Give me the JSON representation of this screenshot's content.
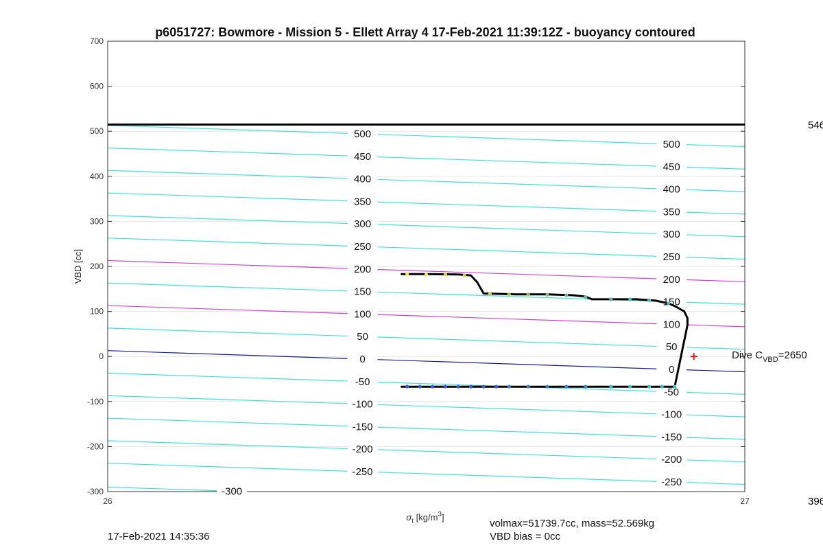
{
  "chart_data": {
    "type": "line",
    "title": "p6051727: Bowmore - Mission 5 - Ellett Array 4 17-Feb-2021 11:39:12Z - buoyancy contoured",
    "xlabel_main": "σ",
    "xlabel_sub": "t",
    "xlabel_unit": " [kg/m",
    "xlabel_unit_sup": "3",
    "xlabel_unit_end": "]",
    "ylabel": "VBD [cc]",
    "xlim": [
      26,
      27
    ],
    "ylim": [
      -300,
      700
    ],
    "xticks": [
      "26",
      "27"
    ],
    "yticks": [
      "700",
      "600",
      "500",
      "400",
      "300",
      "200",
      "100",
      "0",
      "-100",
      "-200",
      "-300"
    ],
    "ytick_values": [
      700,
      600,
      500,
      400,
      300,
      200,
      100,
      0,
      -100,
      -200,
      -300
    ],
    "grid": "y",
    "vbd_max_line": 515,
    "contours": {
      "levels": [
        -300,
        -250,
        -200,
        -150,
        -100,
        -50,
        0,
        50,
        100,
        150,
        200,
        250,
        300,
        350,
        400,
        450,
        500
      ],
      "labels": [
        "-300",
        "-250",
        "-200",
        "-150",
        "-100",
        "-50",
        "0",
        "50",
        "100",
        "150",
        "200",
        "250",
        "300",
        "350",
        "400",
        "450",
        "500"
      ],
      "offsets_at_x26": [
        -290,
        -237,
        -187,
        -137,
        -87,
        -37,
        13,
        63,
        113,
        163,
        213,
        263,
        313,
        363,
        413,
        463,
        513
      ],
      "slope_per_unit_x": -47,
      "colors": {
        "default": "#40e0d0",
        "zero": "#1a1a8c",
        "highlight": "#cc44cc"
      },
      "highlight_levels": [
        100,
        200
      ]
    },
    "series": [
      {
        "type": "profile",
        "points": [
          [
            26.46,
            183
          ],
          [
            26.5,
            183
          ],
          [
            26.55,
            182
          ],
          [
            26.57,
            180
          ],
          [
            26.58,
            165
          ],
          [
            26.59,
            140
          ],
          [
            26.64,
            138
          ],
          [
            26.69,
            138
          ],
          [
            26.73,
            136
          ],
          [
            26.75,
            133
          ],
          [
            26.76,
            127
          ],
          [
            26.83,
            127
          ],
          [
            26.86,
            124
          ],
          [
            26.88,
            118
          ],
          [
            26.89,
            112
          ],
          [
            26.905,
            100
          ],
          [
            26.91,
            85
          ],
          [
            26.91,
            70
          ],
          [
            26.89,
            -67
          ],
          [
            26.46,
            -67
          ]
        ],
        "dots_upper": [
          [
            26.47,
            183
          ],
          [
            26.5,
            182
          ],
          [
            26.53,
            182
          ],
          [
            26.56,
            180
          ],
          [
            26.6,
            139
          ],
          [
            26.63,
            138
          ],
          [
            26.66,
            138
          ],
          [
            26.69,
            137
          ],
          [
            26.72,
            136
          ],
          [
            26.75,
            132
          ],
          [
            26.79,
            127
          ],
          [
            26.82,
            127
          ],
          [
            26.85,
            125
          ],
          [
            26.88,
            118
          ]
        ],
        "dots_lower": [
          [
            26.47,
            -67
          ],
          [
            26.49,
            -67
          ],
          [
            26.51,
            -67
          ],
          [
            26.53,
            -67
          ],
          [
            26.55,
            -67
          ],
          [
            26.57,
            -67
          ],
          [
            26.59,
            -67
          ],
          [
            26.61,
            -67
          ],
          [
            26.63,
            -67
          ],
          [
            26.66,
            -67
          ],
          [
            26.69,
            -67
          ],
          [
            26.72,
            -67
          ],
          [
            26.75,
            -67
          ],
          [
            26.79,
            -67
          ],
          [
            26.82,
            -67
          ],
          [
            26.85,
            -67
          ],
          [
            26.87,
            -67
          ],
          [
            26.89,
            -67
          ]
        ]
      }
    ],
    "cvbd_marker": [
      26.92,
      0
    ],
    "dive_label": "Dive C",
    "dive_label_sub": "VBD",
    "dive_label_val": "=2650"
  },
  "outside_labels": {
    "right_top": "546",
    "right_bottom": "396"
  },
  "footer": {
    "timestamp": "17-Feb-2021 14:35:36",
    "volmax": "volmax=51739.7cc, mass=52.569kg",
    "bias": "VBD bias = 0cc"
  }
}
